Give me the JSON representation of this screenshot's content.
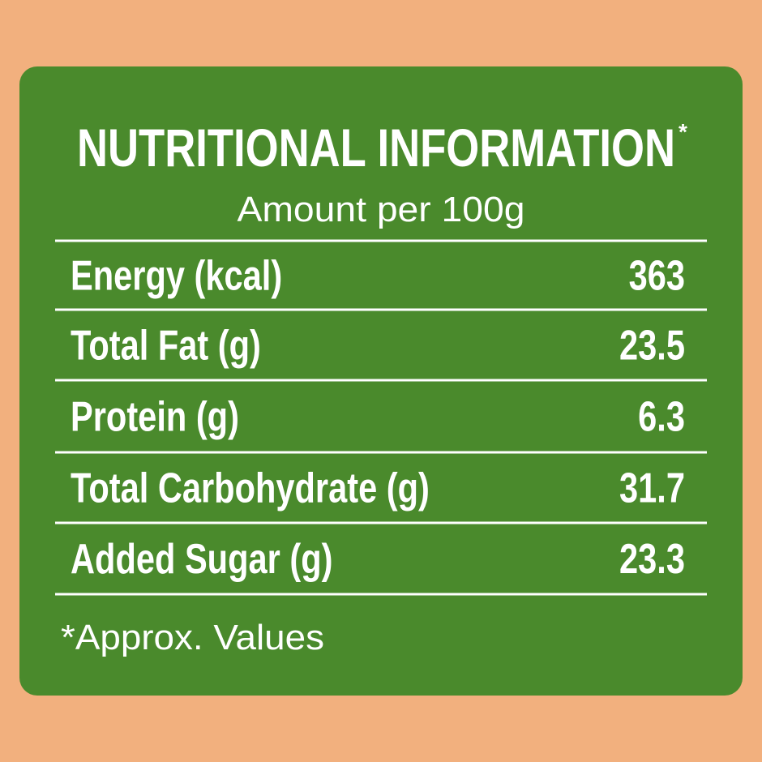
{
  "header": {
    "title": "NUTRITIONAL INFORMATION",
    "title_mark": "*",
    "subtitle": "Amount per 100g"
  },
  "table": {
    "rows": [
      [
        "Energy (kcal)",
        "363"
      ],
      [
        "Total Fat (g)",
        "23.5"
      ],
      [
        "Protein (g)",
        "6.3"
      ],
      [
        "Total Carbohydrate (g)",
        "31.7"
      ],
      [
        "Added Sugar (g)",
        "23.3"
      ]
    ]
  },
  "footnote": "*Approx. Values"
}
